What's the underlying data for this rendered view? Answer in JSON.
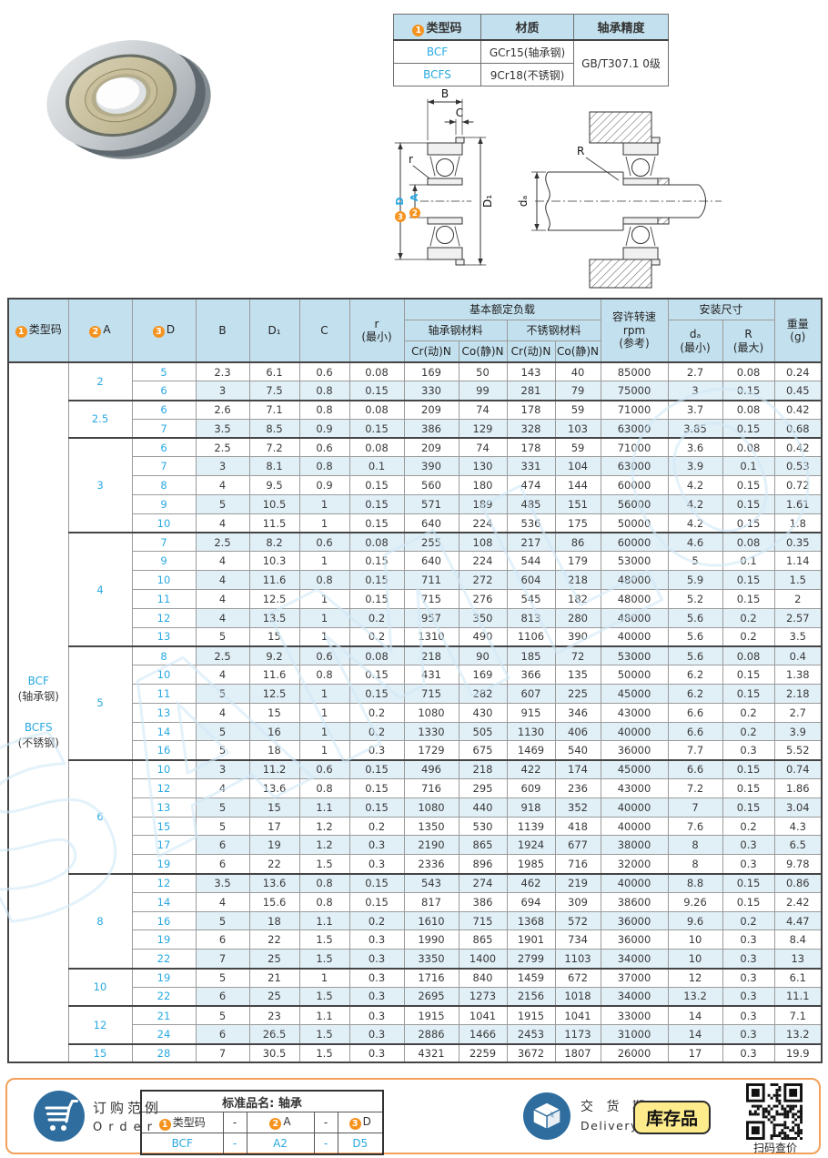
{
  "colors": {
    "header_bg": "#c3e0ee",
    "stripe_bg": "#e1eff7",
    "blue_text": "#29a9e0",
    "orange_badge": "#f6921e",
    "icon_blue": "#2e6d9e",
    "box_border": "#f2a05a",
    "stock_badge_bg": "#fdeb8c"
  },
  "watermark": "SAMLO",
  "spec_table": {
    "header": {
      "c1_badge": "1",
      "c1": "类型码",
      "c2": "材质",
      "c3": "轴承精度"
    },
    "rows": [
      {
        "code": "BCF",
        "material": "GCr15(轴承钢)"
      },
      {
        "code": "BCFS",
        "material": "9Cr18(不锈钢)"
      }
    ],
    "precision": "GB/T307.1 0级"
  },
  "diagram": {
    "dim_B": "B",
    "dim_C": "C",
    "dim_r": "r",
    "dim_D1": "D₁",
    "badge_2": "2",
    "badge_2_letter": "A",
    "badge_3": "3",
    "badge_3_letter": "D",
    "dim_R": "R",
    "dim_da": "dₐ"
  },
  "main_table": {
    "header": {
      "type_badge": "1",
      "type_label": "类型码",
      "a_badge": "2",
      "a_label": "A",
      "d_badge": "3",
      "d_label": "D",
      "B": "B",
      "D1": "D₁",
      "C": "C",
      "r1": "r",
      "r2": "(最小)",
      "load_group": "基本额定负载",
      "steel": "轴承钢材料",
      "stainless": "不锈钢材料",
      "cr": "Cr(动)N",
      "co": "Co(静)N",
      "rpm1": "容许转速",
      "rpm2": "rpm",
      "rpm3": "(参考)",
      "mount": "安装尺寸",
      "da1": "dₐ",
      "da2": "(最小)",
      "R1": "R",
      "R2": "(最大)",
      "wt1": "重量",
      "wt2": "(g)"
    },
    "columns": [
      "D",
      "B",
      "D₁",
      "C",
      "r(最小)",
      "Cr(动)N 轴承钢",
      "Co(静)N 轴承钢",
      "Cr(动)N 不锈钢",
      "Co(静)N 不锈钢",
      "容许转速rpm(参考)",
      "dₐ(最小)",
      "R(最大)",
      "重量(g)"
    ],
    "type_code_cell": {
      "code1": "BCF",
      "note1": "(轴承钢)",
      "code2": "BCFS",
      "note2": "(不锈钢)"
    },
    "groups": [
      {
        "A": "2",
        "rows": [
          [
            "5",
            "2.3",
            "6.1",
            "0.6",
            "0.08",
            "169",
            "50",
            "143",
            "40",
            "85000",
            "2.7",
            "0.08",
            "0.24"
          ],
          [
            "6",
            "3",
            "7.5",
            "0.8",
            "0.15",
            "330",
            "99",
            "281",
            "79",
            "75000",
            "3",
            "0.15",
            "0.45"
          ]
        ]
      },
      {
        "A": "2.5",
        "rows": [
          [
            "6",
            "2.6",
            "7.1",
            "0.8",
            "0.08",
            "209",
            "74",
            "178",
            "59",
            "71000",
            "3.7",
            "0.08",
            "0.42"
          ],
          [
            "7",
            "3.5",
            "8.5",
            "0.9",
            "0.15",
            "386",
            "129",
            "328",
            "103",
            "63000",
            "3.85",
            "0.15",
            "0.68"
          ]
        ]
      },
      {
        "A": "3",
        "rows": [
          [
            "6",
            "2.5",
            "7.2",
            "0.6",
            "0.08",
            "209",
            "74",
            "178",
            "59",
            "71000",
            "3.6",
            "0.08",
            "0.42"
          ],
          [
            "7",
            "3",
            "8.1",
            "0.8",
            "0.1",
            "390",
            "130",
            "331",
            "104",
            "63000",
            "3.9",
            "0.1",
            "0.53"
          ],
          [
            "8",
            "4",
            "9.5",
            "0.9",
            "0.15",
            "560",
            "180",
            "474",
            "144",
            "60000",
            "4.2",
            "0.15",
            "0.72"
          ],
          [
            "9",
            "5",
            "10.5",
            "1",
            "0.15",
            "571",
            "189",
            "485",
            "151",
            "56000",
            "4.2",
            "0.15",
            "1.61"
          ],
          [
            "10",
            "4",
            "11.5",
            "1",
            "0.15",
            "640",
            "224",
            "536",
            "175",
            "50000",
            "4.2",
            "0.15",
            "1.8"
          ]
        ]
      },
      {
        "A": "4",
        "rows": [
          [
            "7",
            "2.5",
            "8.2",
            "0.6",
            "0.08",
            "255",
            "108",
            "217",
            "86",
            "60000",
            "4.6",
            "0.08",
            "0.35"
          ],
          [
            "9",
            "4",
            "10.3",
            "1",
            "0.15",
            "640",
            "224",
            "544",
            "179",
            "53000",
            "5",
            "0.1",
            "1.14"
          ],
          [
            "10",
            "4",
            "11.6",
            "0.8",
            "0.15",
            "711",
            "272",
            "604",
            "218",
            "48000",
            "5.9",
            "0.15",
            "1.5"
          ],
          [
            "11",
            "4",
            "12.5",
            "1",
            "0.15",
            "715",
            "276",
            "545",
            "182",
            "48000",
            "5.2",
            "0.15",
            "2"
          ],
          [
            "12",
            "4",
            "13.5",
            "1",
            "0.2",
            "957",
            "350",
            "813",
            "280",
            "48000",
            "5.6",
            "0.2",
            "2.57"
          ],
          [
            "13",
            "5",
            "15",
            "1",
            "0.2",
            "1310",
            "490",
            "1106",
            "390",
            "40000",
            "5.6",
            "0.2",
            "3.5"
          ]
        ]
      },
      {
        "A": "5",
        "rows": [
          [
            "8",
            "2.5",
            "9.2",
            "0.6",
            "0.08",
            "218",
            "90",
            "185",
            "72",
            "53000",
            "5.6",
            "0.08",
            "0.4"
          ],
          [
            "10",
            "4",
            "11.6",
            "0.8",
            "0.15",
            "431",
            "169",
            "366",
            "135",
            "50000",
            "6.2",
            "0.15",
            "1.38"
          ],
          [
            "11",
            "5",
            "12.5",
            "1",
            "0.15",
            "715",
            "282",
            "607",
            "225",
            "45000",
            "6.2",
            "0.15",
            "2.18"
          ],
          [
            "13",
            "4",
            "15",
            "1",
            "0.2",
            "1080",
            "430",
            "915",
            "346",
            "43000",
            "6.6",
            "0.2",
            "2.7"
          ],
          [
            "14",
            "5",
            "16",
            "1",
            "0.2",
            "1330",
            "505",
            "1130",
            "406",
            "40000",
            "6.6",
            "0.2",
            "3.9"
          ],
          [
            "16",
            "5",
            "18",
            "1",
            "0.3",
            "1729",
            "675",
            "1469",
            "540",
            "36000",
            "7.7",
            "0.3",
            "5.52"
          ]
        ]
      },
      {
        "A": "6",
        "rows": [
          [
            "10",
            "3",
            "11.2",
            "0.6",
            "0.15",
            "496",
            "218",
            "422",
            "174",
            "45000",
            "6.6",
            "0.15",
            "0.74"
          ],
          [
            "12",
            "4",
            "13.6",
            "0.8",
            "0.15",
            "716",
            "295",
            "609",
            "236",
            "43000",
            "7.2",
            "0.15",
            "1.86"
          ],
          [
            "13",
            "5",
            "15",
            "1.1",
            "0.15",
            "1080",
            "440",
            "918",
            "352",
            "40000",
            "7",
            "0.15",
            "3.04"
          ],
          [
            "15",
            "5",
            "17",
            "1.2",
            "0.2",
            "1350",
            "530",
            "1139",
            "418",
            "40000",
            "7.6",
            "0.2",
            "4.3"
          ],
          [
            "17",
            "6",
            "19",
            "1.2",
            "0.3",
            "2190",
            "865",
            "1924",
            "677",
            "38000",
            "8",
            "0.3",
            "6.5"
          ],
          [
            "19",
            "6",
            "22",
            "1.5",
            "0.3",
            "2336",
            "896",
            "1985",
            "716",
            "32000",
            "8",
            "0.3",
            "9.78"
          ]
        ]
      },
      {
        "A": "8",
        "rows": [
          [
            "12",
            "3.5",
            "13.6",
            "0.8",
            "0.15",
            "543",
            "274",
            "462",
            "219",
            "40000",
            "8.8",
            "0.15",
            "0.86"
          ],
          [
            "14",
            "4",
            "15.6",
            "0.8",
            "0.15",
            "817",
            "386",
            "694",
            "309",
            "38600",
            "9.26",
            "0.15",
            "2.42"
          ],
          [
            "16",
            "5",
            "18",
            "1.1",
            "0.2",
            "1610",
            "715",
            "1368",
            "572",
            "36000",
            "9.6",
            "0.2",
            "4.47"
          ],
          [
            "19",
            "6",
            "22",
            "1.5",
            "0.3",
            "1990",
            "865",
            "1901",
            "734",
            "36000",
            "10",
            "0.3",
            "8.4"
          ],
          [
            "22",
            "7",
            "25",
            "1.5",
            "0.3",
            "3350",
            "1400",
            "2799",
            "1103",
            "34000",
            "10",
            "0.3",
            "13"
          ]
        ]
      },
      {
        "A": "10",
        "rows": [
          [
            "19",
            "5",
            "21",
            "1",
            "0.3",
            "1716",
            "840",
            "1459",
            "672",
            "37000",
            "12",
            "0.3",
            "6.1"
          ],
          [
            "22",
            "6",
            "25",
            "1.5",
            "0.3",
            "2695",
            "1273",
            "2156",
            "1018",
            "34000",
            "13.2",
            "0.3",
            "11.1"
          ]
        ]
      },
      {
        "A": "12",
        "rows": [
          [
            "21",
            "5",
            "23",
            "1.1",
            "0.3",
            "1915",
            "1041",
            "1915",
            "1041",
            "33000",
            "14",
            "0.3",
            "7.1"
          ],
          [
            "24",
            "6",
            "26.5",
            "1.5",
            "0.3",
            "2886",
            "1466",
            "2453",
            "1173",
            "31000",
            "14",
            "0.3",
            "13.2"
          ]
        ]
      },
      {
        "A": "15",
        "rows": [
          [
            "28",
            "7",
            "30.5",
            "1.5",
            "0.3",
            "4321",
            "2259",
            "3672",
            "1807",
            "26000",
            "17",
            "0.3",
            "19.9"
          ]
        ]
      }
    ]
  },
  "order_section": {
    "order_cn": "订购范例",
    "order_en": "Order",
    "table_title": "标准品名: 轴承",
    "header": {
      "c1_badge": "1",
      "c1": "类型码",
      "dash1": "-",
      "c2_badge": "2",
      "c2": "A",
      "dash2": "-",
      "c3_badge": "3",
      "c3": "D"
    },
    "example": {
      "code": "BCF",
      "dash1": "-",
      "a": "A2",
      "dash2": "-",
      "d": "D5"
    },
    "delivery_cn": "交 货 期",
    "delivery_en": "Delivery",
    "stock_badge": "库存品",
    "qr_caption": "扫码查价"
  }
}
